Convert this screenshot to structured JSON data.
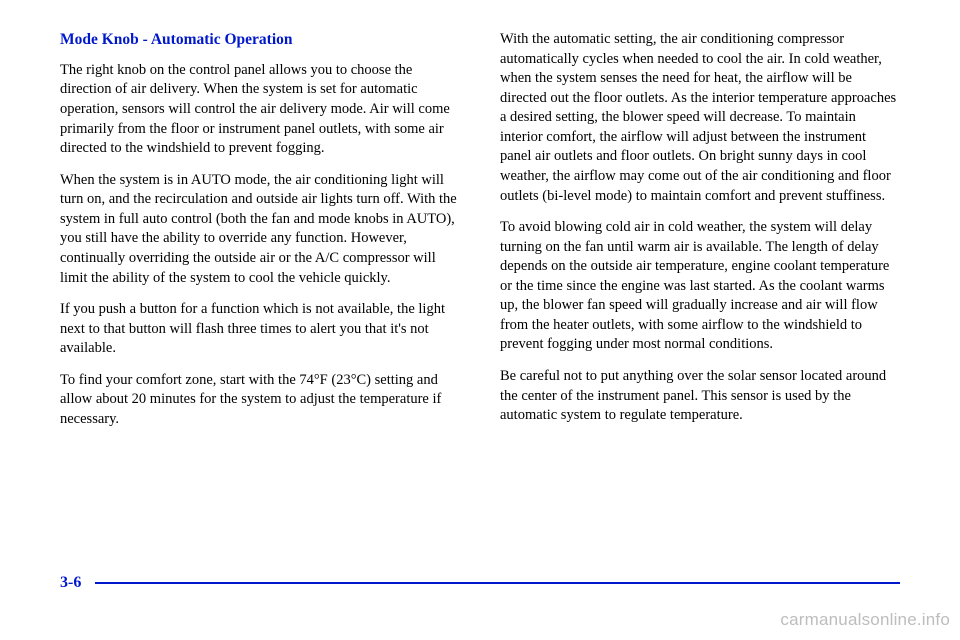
{
  "heading": "Mode Knob - Automatic Operation",
  "left": {
    "p1": "The right knob on the control panel allows you to choose the direction of air delivery. When the system is set for automatic operation, sensors will control the air delivery mode. Air will come primarily from the floor or instrument panel outlets, with some air directed to the windshield to prevent fogging.",
    "p2": "When the system is in AUTO mode, the air conditioning light will turn on, and the recirculation and outside air lights turn off. With the system in full auto control (both the fan and mode knobs in AUTO), you still have the ability to override any function. However, continually overriding the outside air or the A/C compressor will limit the ability of the system to cool the vehicle quickly.",
    "p3": "If you push a button for a function which is not available, the light next to that button will flash three times to alert you that it's not available.",
    "p4": "To find your comfort zone, start with the 74°F (23°C) setting and allow about 20 minutes for the system to adjust the temperature if necessary."
  },
  "right": {
    "p1": "With the automatic setting, the air conditioning compressor automatically cycles when needed to cool the air. In cold weather, when the system senses the need for heat, the airflow will be directed out the floor outlets. As the interior temperature approaches a desired setting, the blower speed will decrease. To maintain interior comfort, the airflow will adjust between the instrument panel air outlets and floor outlets. On bright sunny days in cool weather, the airflow may come out of the air conditioning and floor outlets (bi-level mode) to maintain comfort and prevent stuffiness.",
    "p2": "To avoid blowing cold air in cold weather, the system will delay turning on the fan until warm air is available. The length of delay depends on the outside air temperature, engine coolant temperature or the time since the engine was last started. As the coolant warms up, the blower fan speed will gradually increase and air will flow from the heater outlets, with some airflow to the windshield to prevent fogging under most normal conditions.",
    "p3": "Be careful not to put anything over the solar sensor located around the center of the instrument panel. This sensor is used by the automatic system to regulate temperature."
  },
  "page_number": "3-6",
  "watermark": "carmanualsonline.info",
  "colors": {
    "accent": "#0018cc",
    "text": "#000000",
    "watermark": "#bdbdbd",
    "background": "#ffffff"
  },
  "typography": {
    "body_font": "Times New Roman",
    "body_size_pt": 11,
    "heading_size_pt": 12,
    "watermark_font": "Arial"
  }
}
